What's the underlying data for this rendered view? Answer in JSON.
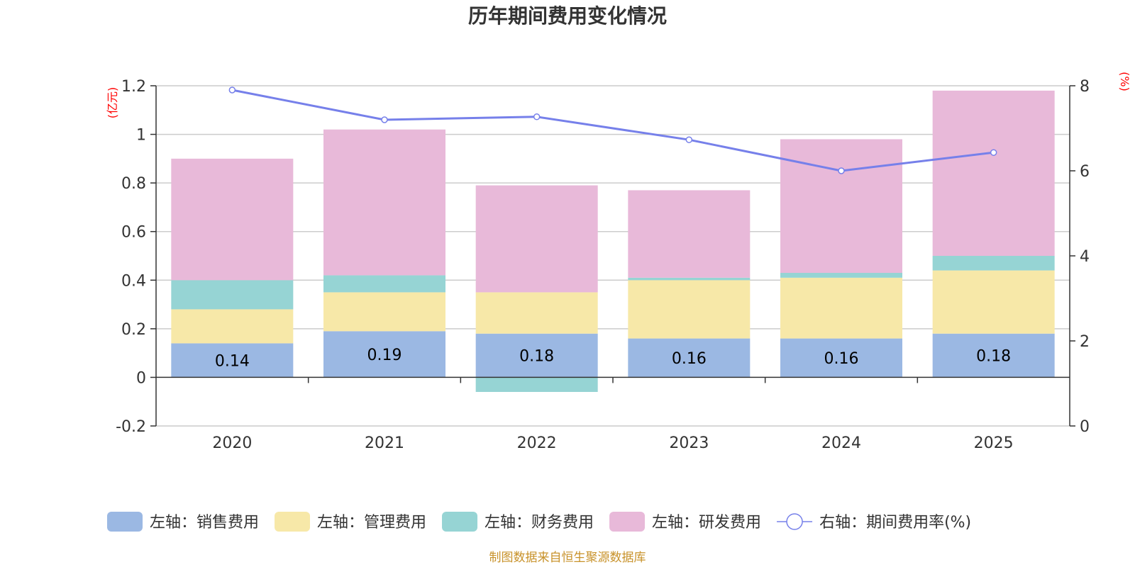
{
  "chart_data": {
    "type": "bar",
    "stacked": true,
    "title": "历年期间费用变化情况",
    "categories": [
      "2020",
      "2021",
      "2022",
      "2023",
      "2024",
      "2025"
    ],
    "left_axis": {
      "unit": "(亿元)",
      "ylim": [
        -0.2,
        1.2
      ],
      "ticks": [
        -0.2,
        0,
        0.2,
        0.4,
        0.6,
        0.8,
        1,
        1.2
      ],
      "tick_labels": [
        "-0.2",
        "0",
        "0.2",
        "0.4",
        "0.6",
        "0.8",
        "1",
        "1.2"
      ]
    },
    "right_axis": {
      "unit": "(%)",
      "ylim": [
        0,
        8
      ],
      "ticks": [
        0,
        2,
        4,
        6,
        8
      ],
      "tick_labels": [
        "0",
        "2",
        "4",
        "6",
        "8"
      ]
    },
    "series": [
      {
        "name": "左轴：销售费用",
        "axis": "left",
        "type": "bar",
        "color": "#9bb8e3",
        "values": [
          0.14,
          0.19,
          0.18,
          0.16,
          0.16,
          0.18
        ],
        "labels": [
          "0.14",
          "0.19",
          "0.18",
          "0.16",
          "0.16",
          "0.18"
        ]
      },
      {
        "name": "左轴：管理费用",
        "axis": "left",
        "type": "bar",
        "color": "#f7e8a8",
        "values": [
          0.14,
          0.16,
          0.17,
          0.24,
          0.25,
          0.26
        ]
      },
      {
        "name": "左轴：财务费用",
        "axis": "left",
        "type": "bar",
        "color": "#96d4d4",
        "values": [
          0.12,
          0.07,
          -0.06,
          0.01,
          0.02,
          0.06
        ]
      },
      {
        "name": "左轴：研发费用",
        "axis": "left",
        "type": "bar",
        "color": "#e8b9d9",
        "values": [
          0.5,
          0.6,
          0.44,
          0.36,
          0.55,
          0.68
        ]
      },
      {
        "name": "右轴：期间费用率(%)",
        "axis": "right",
        "type": "line",
        "color": "#7680ea",
        "values": [
          7.9,
          7.2,
          7.27,
          6.73,
          6.0,
          6.43
        ]
      }
    ],
    "source": "制图数据来自恒生聚源数据库"
  }
}
